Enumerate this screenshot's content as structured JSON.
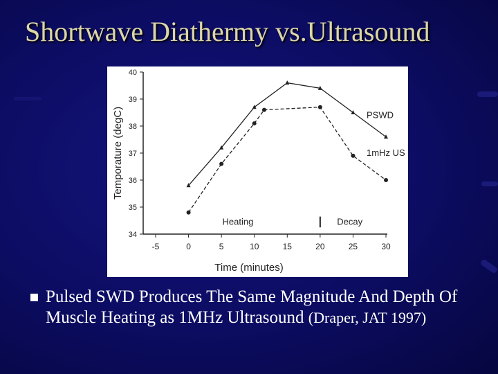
{
  "slide": {
    "title": "Shortwave Diathermy vs.Ultrasound",
    "bullet": "Pulsed SWD Produces The Same Magnitude And Depth Of Muscle Heating as 1MHz Ultrasound ",
    "citation": "(Draper, JAT 1997)",
    "colors": {
      "background": "#0c0c62",
      "title": "#dcd6a8",
      "bullet": "#ffffff"
    }
  },
  "chart_data": {
    "type": "line",
    "xlabel": "Time (minutes)",
    "ylabel": "Temporature (degC)",
    "xlim": [
      -5,
      30
    ],
    "ylim": [
      34,
      40
    ],
    "x_ticks": [
      "-5",
      "0",
      "5",
      "10",
      "15",
      "20",
      "25",
      "30"
    ],
    "y_ticks": [
      "34",
      "35",
      "36",
      "37",
      "38",
      "39",
      "40"
    ],
    "series": [
      {
        "name": "PSWD",
        "marker": "triangle",
        "line": "solid",
        "points": [
          [
            0,
            35.8
          ],
          [
            5,
            37.2
          ],
          [
            10,
            38.7
          ],
          [
            15,
            39.6
          ],
          [
            20,
            39.4
          ],
          [
            25,
            38.5
          ],
          [
            30,
            37.6
          ]
        ]
      },
      {
        "name": "1mHz US",
        "marker": "circle",
        "line": "dashed",
        "points": [
          [
            0,
            34.8
          ],
          [
            5,
            36.6
          ],
          [
            10,
            38.1
          ],
          [
            11.5,
            38.6
          ],
          [
            20,
            38.7
          ],
          [
            25,
            36.9
          ],
          [
            30,
            36.0
          ]
        ]
      }
    ],
    "annotations": [
      {
        "text": "Heating",
        "x": 7.5
      },
      {
        "text": "Decay",
        "x": 24.5
      }
    ],
    "phase_divider_x": 20,
    "grid": false
  }
}
